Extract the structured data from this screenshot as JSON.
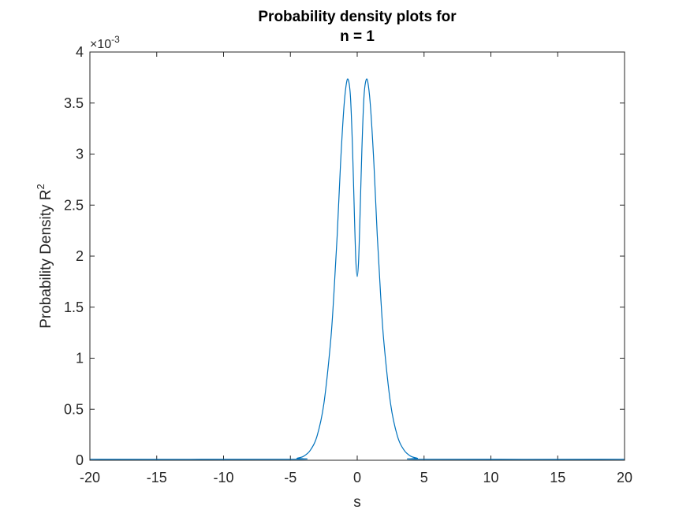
{
  "chart_data": {
    "type": "line",
    "title_lines": [
      "Probability density plots for",
      "n = 1"
    ],
    "xlabel": "s",
    "ylabel_base": "Probability Density R",
    "ylabel_sup": "2",
    "y_exponent_prefix": "×10",
    "y_exponent_power": "-3",
    "xlim": [
      -20,
      20
    ],
    "ylim": [
      0,
      4
    ],
    "x_ticks": [
      -20,
      -15,
      -10,
      -5,
      0,
      5,
      10,
      15,
      20
    ],
    "x_tick_labels": [
      "-20",
      "-15",
      "-10",
      "-5",
      "0",
      "5",
      "10",
      "15",
      "20"
    ],
    "y_ticks": [
      0,
      0.5,
      1,
      1.5,
      2,
      2.5,
      3,
      3.5,
      4
    ],
    "y_tick_labels": [
      "0",
      "0.5",
      "1",
      "1.5",
      "2",
      "2.5",
      "3",
      "3.5",
      "4"
    ],
    "grid": false,
    "line_color": "#0072BD",
    "series": [
      {
        "x": [
          -20,
          -5,
          -4.5,
          -4,
          -3.5,
          -3,
          -2.5,
          -2,
          -1.75,
          -1.5,
          -1.25,
          -1,
          -0.8,
          -0.65,
          -0.5,
          -0.35,
          -0.2,
          -0.1,
          0,
          0.1,
          0.2,
          0.35,
          0.5,
          0.65,
          0.8,
          1,
          1.25,
          1.5,
          1.75,
          2,
          2.5,
          3,
          3.5,
          4,
          4.5,
          5,
          20
        ],
        "y": [
          0.01,
          0.01,
          0.02,
          0.04,
          0.1,
          0.24,
          0.55,
          1.15,
          1.62,
          2.2,
          2.9,
          3.45,
          3.7,
          3.72,
          3.55,
          3.05,
          2.35,
          1.95,
          1.8,
          1.95,
          2.35,
          3.05,
          3.55,
          3.72,
          3.7,
          3.45,
          2.9,
          2.2,
          1.62,
          1.15,
          0.55,
          0.24,
          0.1,
          0.04,
          0.02,
          0.01,
          0.01
        ]
      }
    ]
  }
}
